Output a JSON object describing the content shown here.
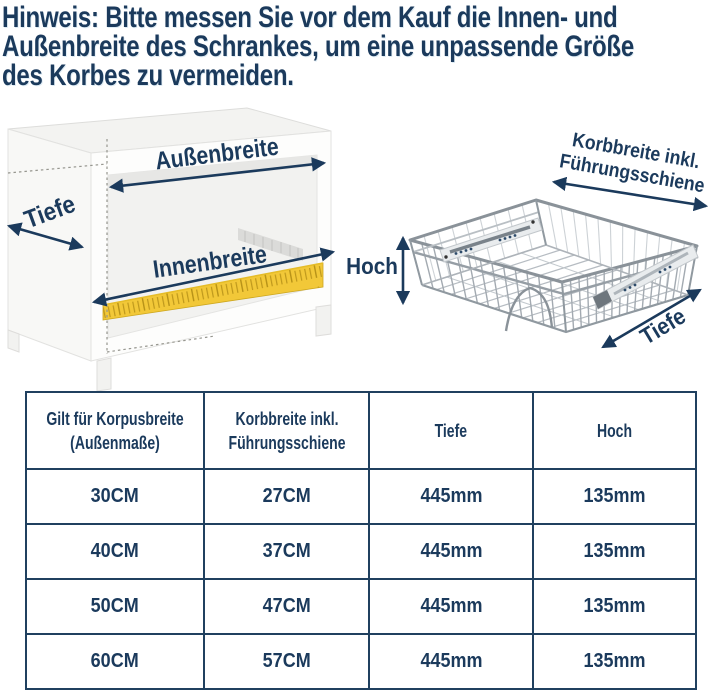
{
  "notice": {
    "lines": [
      "Hinweis: Bitte messen Sie vor dem Kauf die Innen- und",
      "Außenbreite des Schrankes, um eine unpassende Größe",
      "des Korbes zu vermeiden."
    ]
  },
  "diagram": {
    "cabinet_labels": {
      "aussenbreite": "Außenbreite",
      "tiefe": "Tiefe",
      "innenbreite": "Innenbreite"
    },
    "basket_labels": {
      "hoch": "Hoch",
      "korbbreite_line1": "Korbbreite inkl.",
      "korbbreite_line2": "Führungsschiene",
      "tiefe": "Tiefe"
    },
    "colors": {
      "accent_navy": "#1b3a5c",
      "tape_yellow": "#f2c838",
      "wire_gray": "#9aa1a8"
    }
  },
  "table": {
    "headers": [
      {
        "line1": "Gilt für Korpusbreite",
        "line2": "(Außenmaße)"
      },
      {
        "line1": "Korbbreite inkl.",
        "line2": "Führungsschiene"
      },
      {
        "line1": "Tiefe",
        "line2": ""
      },
      {
        "line1": "Hoch",
        "line2": ""
      }
    ],
    "rows": [
      [
        "30CM",
        "27CM",
        "445mm",
        "135mm"
      ],
      [
        "40CM",
        "37CM",
        "445mm",
        "135mm"
      ],
      [
        "50CM",
        "47CM",
        "445mm",
        "135mm"
      ],
      [
        "60CM",
        "57CM",
        "445mm",
        "135mm"
      ]
    ]
  }
}
